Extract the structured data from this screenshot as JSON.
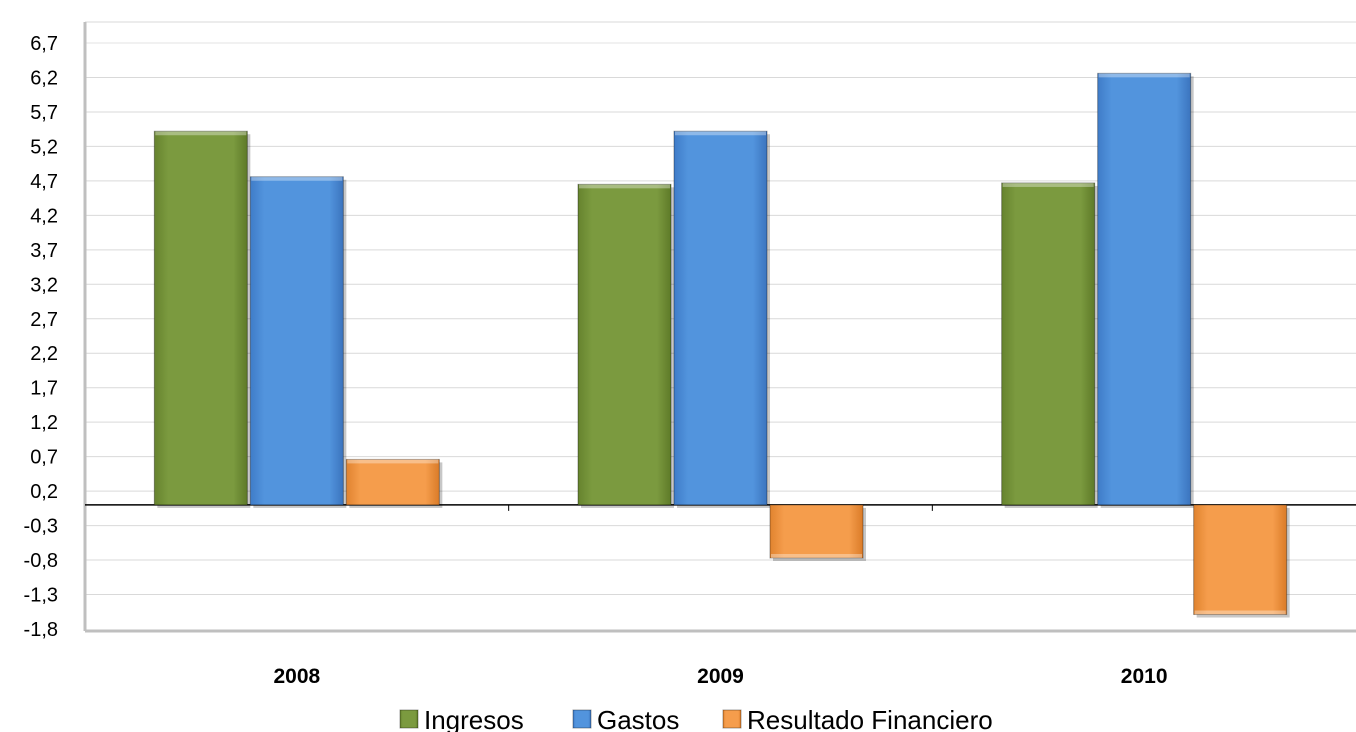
{
  "chart_data": {
    "type": "bar",
    "categories": [
      "2008",
      "2009",
      "2010"
    ],
    "series": [
      {
        "name": "Ingresos",
        "values": [
          5.42,
          4.65,
          4.67
        ],
        "color": "#7B9A3F"
      },
      {
        "name": "Gastos",
        "values": [
          4.76,
          5.42,
          6.26
        ],
        "color": "#5294DD"
      },
      {
        "name": "Resultado Financiero",
        "values": [
          0.66,
          -0.77,
          -1.59
        ],
        "color": "#F59D4C"
      }
    ],
    "ylim": [
      -1.8,
      6.7
    ],
    "yticks": [
      "6,7",
      "6,2",
      "5,7",
      "5,2",
      "4,7",
      "4,2",
      "3,7",
      "3,2",
      "2,7",
      "2,2",
      "1,7",
      "1,2",
      "0,7",
      "0,2",
      "-0,3",
      "-0,8",
      "-1,3",
      "-1,8"
    ],
    "grid": true,
    "legend_position": "bottom",
    "title": "",
    "xlabel": "",
    "ylabel": ""
  }
}
